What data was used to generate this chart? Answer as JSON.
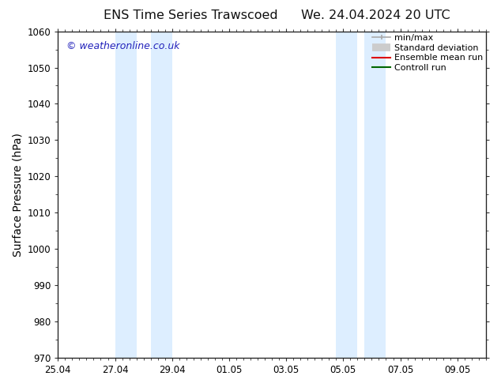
{
  "title_left": "ENS Time Series Trawscoed",
  "title_right": "We. 24.04.2024 20 UTC",
  "ylabel": "Surface Pressure (hPa)",
  "xlabel_ticks": [
    "25.04",
    "27.04",
    "29.04",
    "01.05",
    "03.05",
    "05.05",
    "07.05",
    "09.05"
  ],
  "xtick_positions": [
    0,
    2,
    4,
    6,
    8,
    10,
    12,
    14
  ],
  "xlim": [
    0,
    15.0
  ],
  "ylim": [
    970,
    1060
  ],
  "yticks": [
    970,
    980,
    990,
    1000,
    1010,
    1020,
    1030,
    1040,
    1050,
    1060
  ],
  "watermark": "© weatheronline.co.uk",
  "watermark_color": "#2222bb",
  "bg_color": "#ffffff",
  "shaded_bands": [
    {
      "x_start": 2.0,
      "x_end": 2.75
    },
    {
      "x_start": 3.25,
      "x_end": 4.0
    },
    {
      "x_start": 9.75,
      "x_end": 10.5
    },
    {
      "x_start": 10.75,
      "x_end": 11.5
    }
  ],
  "shaded_color": "#ddeeff",
  "legend_items": [
    {
      "label": "min/max",
      "color": "#aaaaaa",
      "lw": 1.2,
      "style": "minmax"
    },
    {
      "label": "Standard deviation",
      "color": "#cccccc",
      "lw": 7,
      "style": "thick"
    },
    {
      "label": "Ensemble mean run",
      "color": "#dd0000",
      "lw": 1.5,
      "style": "line"
    },
    {
      "label": "Controll run",
      "color": "#006600",
      "lw": 1.5,
      "style": "line"
    }
  ],
  "tick_label_fontsize": 8.5,
  "axis_label_fontsize": 10,
  "title_fontsize": 11.5,
  "legend_fontsize": 8
}
